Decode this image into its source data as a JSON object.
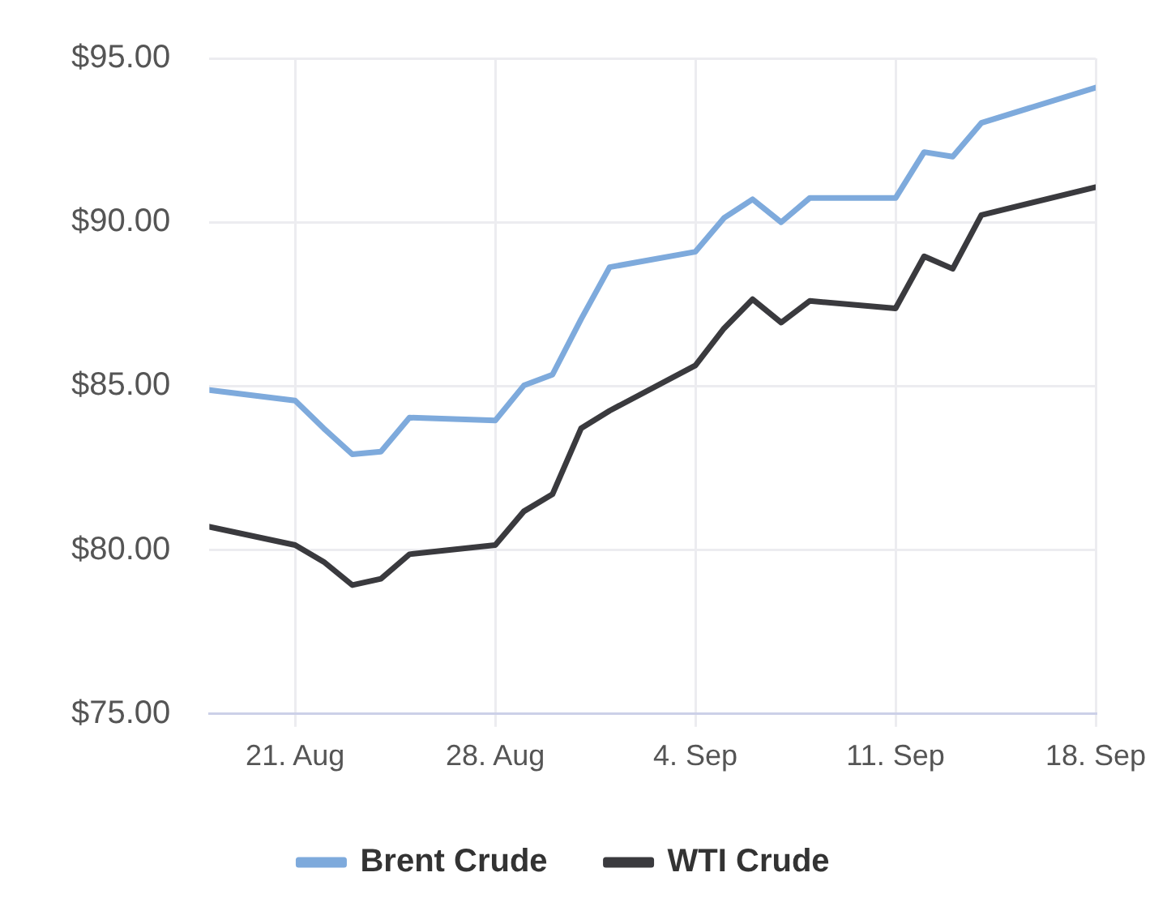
{
  "chart_data": {
    "type": "line",
    "x": [
      "--08-18",
      "--08-21",
      "--08-22",
      "--08-23",
      "--08-24",
      "--08-25",
      "--08-28",
      "--08-29",
      "--08-30",
      "--08-31",
      "--09-01",
      "--09-04",
      "--09-05",
      "--09-06",
      "--09-07",
      "--09-08",
      "--09-11",
      "--09-12",
      "--09-13",
      "--09-14",
      "--09-18"
    ],
    "series": [
      {
        "name": "Brent Crude",
        "color": "#7eaadc",
        "values": [
          84.88,
          84.56,
          83.71,
          82.92,
          83.0,
          84.04,
          83.95,
          85.02,
          85.35,
          87.04,
          88.63,
          89.1,
          90.13,
          90.7,
          90.0,
          90.74,
          90.74,
          92.14,
          92.0,
          93.03,
          94.11
        ]
      },
      {
        "name": "WTI Crude",
        "color": "#3a3a3e",
        "values": [
          80.71,
          80.15,
          79.64,
          78.93,
          79.12,
          79.87,
          80.15,
          81.18,
          81.7,
          83.71,
          84.25,
          85.63,
          86.76,
          87.65,
          86.94,
          87.6,
          87.37,
          88.96,
          88.58,
          90.22,
          91.07
        ]
      }
    ],
    "xlim": [
      "--08-18",
      "--09-18"
    ],
    "xticks": [
      {
        "value": "--08-21",
        "label": "21. Aug"
      },
      {
        "value": "--08-28",
        "label": "28. Aug"
      },
      {
        "value": "--09-04",
        "label": "4. Sep"
      },
      {
        "value": "--09-11",
        "label": "11. Sep"
      },
      {
        "value": "--09-18",
        "label": "18. Sep"
      }
    ],
    "ylim": [
      75,
      95
    ],
    "yticks": [
      {
        "value": 75,
        "label": "$75.00"
      },
      {
        "value": 80,
        "label": "$80.00"
      },
      {
        "value": 85,
        "label": "$85.00"
      },
      {
        "value": 90,
        "label": "$90.00"
      },
      {
        "value": 95,
        "label": "$95.00"
      }
    ],
    "grid": true,
    "legend": "bottom",
    "marker": "none",
    "line_style": "solid"
  }
}
